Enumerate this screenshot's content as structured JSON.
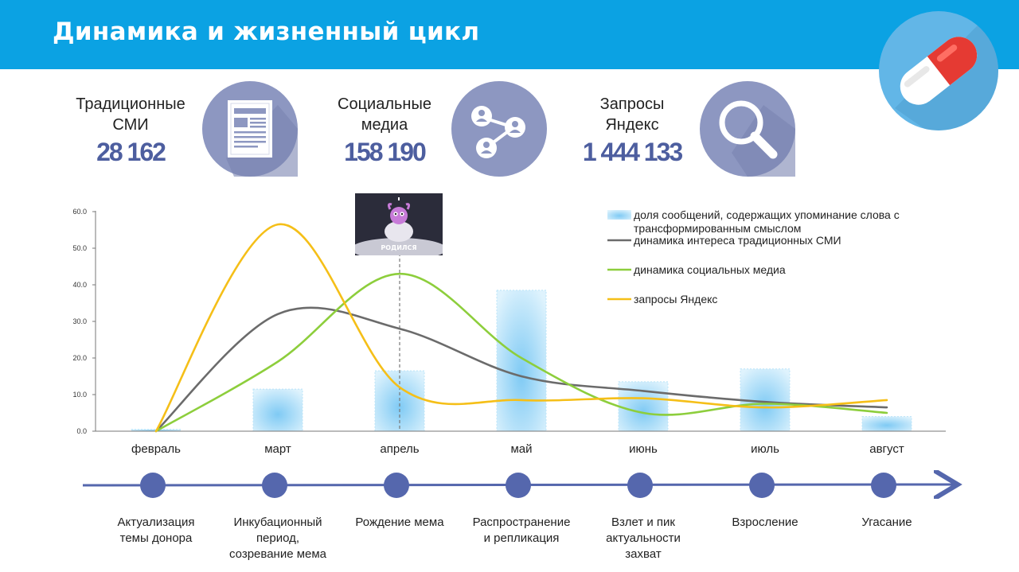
{
  "header": {
    "title": "Динамика и жизненный цикл"
  },
  "stats": [
    {
      "label_line1": "Традиционные",
      "label_line2": "СМИ",
      "value": "28 162",
      "icon": "newspaper-icon"
    },
    {
      "label_line1": "Социальные",
      "label_line2": "медиа",
      "value": "158 190",
      "icon": "share-network-icon"
    },
    {
      "label_line1": "Запросы",
      "label_line2": "Яндекс",
      "value": "1 444 133",
      "icon": "magnifier-icon"
    }
  ],
  "meme": {
    "caption": "РОДИЛСЯ"
  },
  "colors": {
    "header": "#0ba2e3",
    "accent": "#4d5e9f",
    "bar": "#9fd8f6",
    "media_line": "#6b6b6b",
    "social_line": "#8dce3c",
    "yandex_line": "#f5bf18"
  },
  "chart_data": {
    "type": "bar+line",
    "categories": [
      "февраль",
      "март",
      "апрель",
      "май",
      "июнь",
      "июль",
      "август"
    ],
    "y_ticks": [
      "60.0",
      "50.0",
      "40.0",
      "30.0",
      "20.0",
      "10.0",
      "0.0"
    ],
    "ylim": [
      0,
      60
    ],
    "grid": false,
    "legend_position": "top-right",
    "series": [
      {
        "name": "доля сообщений, содержащих упоминание слова с трансформированным смыслом",
        "type": "bar",
        "values": [
          0.5,
          11.5,
          16.5,
          38.5,
          13.5,
          17,
          4
        ]
      },
      {
        "name": "динамика интереса традиционных СМИ",
        "type": "line",
        "values": [
          0,
          32,
          28,
          15,
          11,
          8,
          6.5
        ]
      },
      {
        "name": "динамика социальных медиа",
        "type": "line",
        "values": [
          0,
          19,
          43,
          20,
          5,
          7.5,
          5
        ]
      },
      {
        "name": "запросы Яндекс",
        "type": "line",
        "values": [
          0,
          56.5,
          12,
          8.5,
          9,
          6.5,
          8.5
        ]
      }
    ]
  },
  "timeline": {
    "stages": [
      {
        "lines": [
          "Актуализация",
          "темы донора"
        ]
      },
      {
        "lines": [
          "Инкубационный",
          "период,",
          "созревание мема"
        ]
      },
      {
        "lines": [
          "Рождение мема"
        ]
      },
      {
        "lines": [
          "Распространение",
          "и репликация"
        ]
      },
      {
        "lines": [
          "Взлет и пик",
          "актуальности",
          "захват"
        ]
      },
      {
        "lines": [
          "Взросление"
        ]
      },
      {
        "lines": [
          "Угасание"
        ]
      }
    ]
  }
}
